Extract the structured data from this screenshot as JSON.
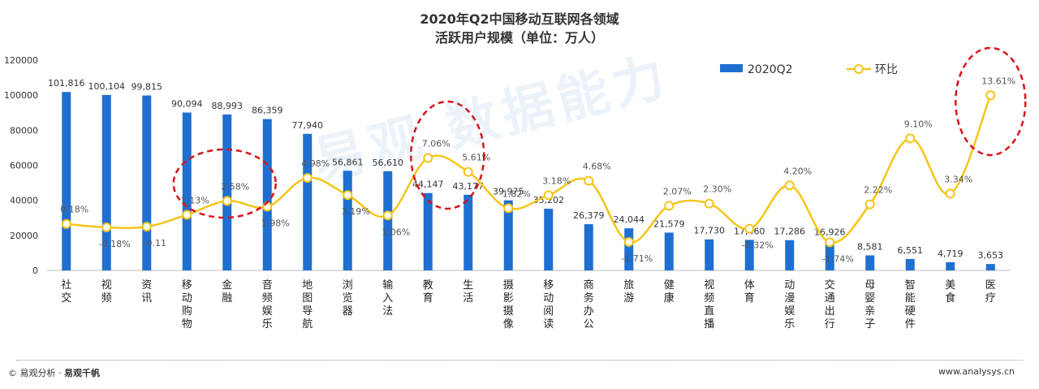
{
  "chart_data": {
    "type": "bar+line",
    "title_line1": "2020年Q2中国移动互联网各领域",
    "title_line2": "活跃用户规模（单位：万人）",
    "categories": [
      "社交",
      "视频",
      "资讯",
      "移动购物",
      "金融",
      "音频娱乐",
      "地图导航",
      "浏览器",
      "输入法",
      "教育",
      "生活",
      "摄影摄像",
      "移动阅读",
      "商务办公",
      "旅游",
      "健康",
      "视频直播",
      "体育",
      "动漫娱乐",
      "交通出行",
      "母婴亲子",
      "智能硬件",
      "美食",
      "医疗"
    ],
    "series": [
      {
        "name": "2020Q2",
        "type": "bar",
        "axis": "left",
        "values": [
          101816,
          100104,
          99815,
          90094,
          88993,
          86359,
          77940,
          56861,
          56610,
          44147,
          43177,
          39975,
          35202,
          26379,
          24044,
          21579,
          17730,
          17460,
          17286,
          16926,
          8581,
          6551,
          4719,
          3653
        ],
        "labels": [
          "101,816",
          "100,104",
          "99,815",
          "90,094",
          "88,993",
          "86,359",
          "77,940",
          "56,861",
          "56,610",
          "44,147",
          "43,177",
          "39,975",
          "35,202",
          "26,379",
          "24,044",
          "21,579",
          "17,730",
          "17,460",
          "17,286",
          "16,926",
          "8,581",
          "6,551",
          "4,719",
          "3,653"
        ]
      },
      {
        "name": "环比",
        "type": "line",
        "axis": "hidden",
        "values": [
          0.18,
          -0.18,
          -0.11,
          1.13,
          2.58,
          1.98,
          4.98,
          3.19,
          1.06,
          7.06,
          5.61,
          1.82,
          3.18,
          4.68,
          -1.71,
          2.07,
          2.3,
          -0.32,
          4.2,
          -1.74,
          2.22,
          9.1,
          3.34,
          13.61
        ],
        "labels": [
          "0.18%",
          "-0.18%",
          "-0.11",
          "1.13%",
          "2.58%",
          "1.98%",
          "4.98%",
          "3.19%",
          "1.06%",
          "7.06%",
          "5.61%",
          "1.82%",
          "3.18%",
          "4.68%",
          "-1.71%",
          "2.07%",
          "2.30%",
          "-0.32%",
          "4.20%",
          "-1.74%",
          "2.22%",
          "9.10%",
          "3.34%",
          "13.61%"
        ]
      }
    ],
    "ylim": [
      0,
      120000
    ],
    "yticks": [
      "0",
      "20000",
      "40000",
      "60000",
      "80000",
      "100000",
      "120000"
    ],
    "legend": {
      "bar": "2020Q2",
      "line": "环比",
      "position": "top-right"
    },
    "colors": {
      "bar": "#1f6fd1",
      "line": "#f5c518",
      "highlight": "#d9141a",
      "text": "#333333"
    },
    "highlighted_categories": [
      "金融",
      "教育",
      "医疗"
    ],
    "grid": false
  },
  "watermark": "易观 数据能力",
  "footer": {
    "left_prefix": "© 易观分析 · ",
    "left_brand": "易观千帆",
    "right": "www.analysys.cn"
  }
}
